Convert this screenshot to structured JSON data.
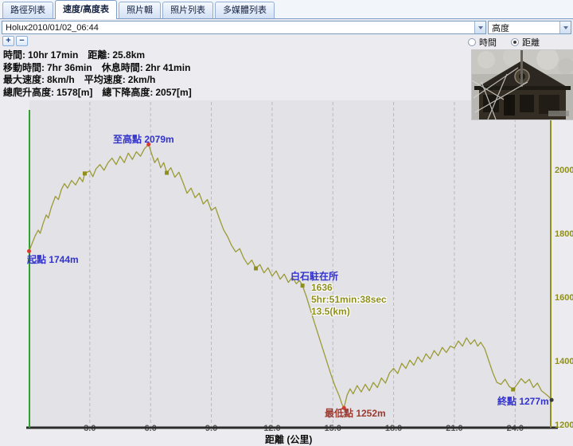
{
  "tabs": [
    {
      "label": "路徑列表",
      "active": false
    },
    {
      "label": "速度/高度表",
      "active": true
    },
    {
      "label": "照片輯",
      "active": false
    },
    {
      "label": "照片列表",
      "active": false
    },
    {
      "label": "多媒體列表",
      "active": false
    }
  ],
  "toolbar": {
    "track_selector_value": "Holux2010/01/02_06:44",
    "y_axis_selector_value": "高度",
    "zoom_in_label": "+",
    "zoom_out_label": "−",
    "radio_time_label": "時間",
    "radio_distance_label": "距離",
    "radio_selected": "距離"
  },
  "stats": {
    "rows": [
      {
        "a_label": "時間:",
        "a_value": "10hr 17min",
        "b_label": "距離:",
        "b_value": "25.8km"
      },
      {
        "a_label": "移動時間:",
        "a_value": "7hr 36min",
        "b_label": "休息時間:",
        "b_value": "2hr 41min"
      },
      {
        "a_label": "最大速度:",
        "a_value": "8km/h",
        "b_label": "平均速度:",
        "b_value": "2km/h"
      },
      {
        "a_label": "總爬升高度:",
        "a_value": "1578[m]",
        "b_label": "總下降高度:",
        "b_value": "2057[m]"
      }
    ]
  },
  "colors": {
    "line_olive": "#9b9b35",
    "axis_green": "#2fa12f",
    "axis_olive": "#8f8f1d",
    "annotation_blue": "#3333cc",
    "annotation_maroon": "#9c3a30",
    "marker_red": "#d63a2f"
  },
  "chart_data": {
    "type": "line",
    "title": "",
    "xlabel": "距離 (公里)",
    "ylabel": "高度",
    "xlim": [
      0,
      26.1
    ],
    "ylim": [
      1200,
      2160
    ],
    "grid": "vertical-dashed",
    "x_tick_values": [
      3,
      6,
      9,
      12,
      15,
      18,
      21,
      24
    ],
    "x_ticks": [
      "3.0",
      "6.0",
      "9.0",
      "12.0",
      "15.0",
      "18.0",
      "21.0",
      "24.0"
    ],
    "y_ticks": [
      2000,
      1800,
      1600,
      1400,
      1200
    ],
    "line_color": "#9b9b35",
    "series": [
      {
        "name": "高度",
        "points": [
          [
            0,
            1744
          ],
          [
            0.15,
            1768
          ],
          [
            0.3,
            1792
          ],
          [
            0.45,
            1810
          ],
          [
            0.55,
            1800
          ],
          [
            0.7,
            1832
          ],
          [
            0.85,
            1858
          ],
          [
            0.95,
            1848
          ],
          [
            1.1,
            1882
          ],
          [
            1.3,
            1916
          ],
          [
            1.45,
            1906
          ],
          [
            1.6,
            1938
          ],
          [
            1.75,
            1956
          ],
          [
            1.9,
            1942
          ],
          [
            2.1,
            1966
          ],
          [
            2.3,
            1952
          ],
          [
            2.5,
            1976
          ],
          [
            2.65,
            1962
          ],
          [
            2.75,
            1988
          ],
          [
            3.0,
            1996
          ],
          [
            3.15,
            1978
          ],
          [
            3.3,
            2002
          ],
          [
            3.5,
            2016
          ],
          [
            3.7,
            1998
          ],
          [
            3.9,
            2022
          ],
          [
            4.1,
            2036
          ],
          [
            4.3,
            2016
          ],
          [
            4.5,
            2042
          ],
          [
            4.7,
            2022
          ],
          [
            4.9,
            2052
          ],
          [
            5.1,
            2032
          ],
          [
            5.3,
            2056
          ],
          [
            5.5,
            2042
          ],
          [
            5.7,
            2066
          ],
          [
            5.9,
            2079
          ],
          [
            6.05,
            2050
          ],
          [
            6.2,
            2022
          ],
          [
            6.35,
            2036
          ],
          [
            6.5,
            2006
          ],
          [
            6.65,
            2022
          ],
          [
            6.8,
            1990
          ],
          [
            7.0,
            2006
          ],
          [
            7.2,
            1976
          ],
          [
            7.4,
            1992
          ],
          [
            7.6,
            1960
          ],
          [
            7.8,
            1926
          ],
          [
            8.0,
            1942
          ],
          [
            8.2,
            1912
          ],
          [
            8.4,
            1926
          ],
          [
            8.6,
            1892
          ],
          [
            8.8,
            1906
          ],
          [
            9.0,
            1872
          ],
          [
            9.2,
            1882
          ],
          [
            9.4,
            1846
          ],
          [
            9.6,
            1812
          ],
          [
            9.8,
            1790
          ],
          [
            10.0,
            1762
          ],
          [
            10.2,
            1742
          ],
          [
            10.4,
            1752
          ],
          [
            10.6,
            1722
          ],
          [
            10.8,
            1702
          ],
          [
            11.0,
            1716
          ],
          [
            11.2,
            1690
          ],
          [
            11.4,
            1702
          ],
          [
            11.6,
            1676
          ],
          [
            11.8,
            1692
          ],
          [
            12.0,
            1666
          ],
          [
            12.2,
            1682
          ],
          [
            12.4,
            1656
          ],
          [
            12.6,
            1672
          ],
          [
            12.8,
            1646
          ],
          [
            13.0,
            1662
          ],
          [
            13.2,
            1642
          ],
          [
            13.35,
            1652
          ],
          [
            13.5,
            1636
          ],
          [
            13.7,
            1600
          ],
          [
            13.9,
            1558
          ],
          [
            14.1,
            1518
          ],
          [
            14.3,
            1478
          ],
          [
            14.5,
            1438
          ],
          [
            14.7,
            1398
          ],
          [
            14.9,
            1358
          ],
          [
            15.1,
            1322
          ],
          [
            15.3,
            1292
          ],
          [
            15.45,
            1264
          ],
          [
            15.55,
            1252
          ],
          [
            15.7,
            1292
          ],
          [
            15.85,
            1312
          ],
          [
            16.0,
            1296
          ],
          [
            16.2,
            1322
          ],
          [
            16.4,
            1302
          ],
          [
            16.6,
            1326
          ],
          [
            16.8,
            1306
          ],
          [
            17.0,
            1332
          ],
          [
            17.2,
            1316
          ],
          [
            17.4,
            1346
          ],
          [
            17.6,
            1330
          ],
          [
            17.8,
            1362
          ],
          [
            18.0,
            1376
          ],
          [
            18.2,
            1360
          ],
          [
            18.4,
            1392
          ],
          [
            18.6,
            1376
          ],
          [
            18.8,
            1402
          ],
          [
            19.0,
            1386
          ],
          [
            19.2,
            1412
          ],
          [
            19.4,
            1396
          ],
          [
            19.6,
            1422
          ],
          [
            19.8,
            1406
          ],
          [
            20.0,
            1432
          ],
          [
            20.2,
            1416
          ],
          [
            20.4,
            1442
          ],
          [
            20.6,
            1426
          ],
          [
            20.8,
            1446
          ],
          [
            21.0,
            1440
          ],
          [
            21.2,
            1462
          ],
          [
            21.4,
            1446
          ],
          [
            21.6,
            1472
          ],
          [
            21.8,
            1452
          ],
          [
            22.0,
            1466
          ],
          [
            22.15,
            1446
          ],
          [
            22.3,
            1458
          ],
          [
            22.5,
            1438
          ],
          [
            22.7,
            1400
          ],
          [
            22.9,
            1362
          ],
          [
            23.1,
            1332
          ],
          [
            23.3,
            1326
          ],
          [
            23.5,
            1342
          ],
          [
            23.7,
            1320
          ],
          [
            23.9,
            1310
          ],
          [
            24.1,
            1326
          ],
          [
            24.3,
            1344
          ],
          [
            24.5,
            1330
          ],
          [
            24.7,
            1342
          ],
          [
            24.9,
            1316
          ],
          [
            25.1,
            1330
          ],
          [
            25.3,
            1306
          ],
          [
            25.5,
            1296
          ],
          [
            25.65,
            1288
          ],
          [
            25.8,
            1277
          ]
        ]
      }
    ],
    "square_markers": [
      [
        2.75,
        1988
      ],
      [
        6.8,
        1990
      ],
      [
        11.2,
        1690
      ],
      [
        13.5,
        1636
      ],
      [
        23.9,
        1310
      ]
    ],
    "red_markers": [
      [
        0,
        1744
      ],
      [
        5.9,
        2079
      ],
      [
        15.55,
        1252
      ]
    ],
    "end_marker": [
      25.8,
      1277
    ],
    "annotations": {
      "start": "起點 1744m",
      "peak": "至高點 2079m",
      "waypoint": "白石駐在所",
      "low": "最低點 1252m",
      "end": "終點 1277m"
    },
    "callout": {
      "lines": [
        "1636",
        "5hr:51min:38sec",
        "13.5(km)"
      ]
    }
  }
}
